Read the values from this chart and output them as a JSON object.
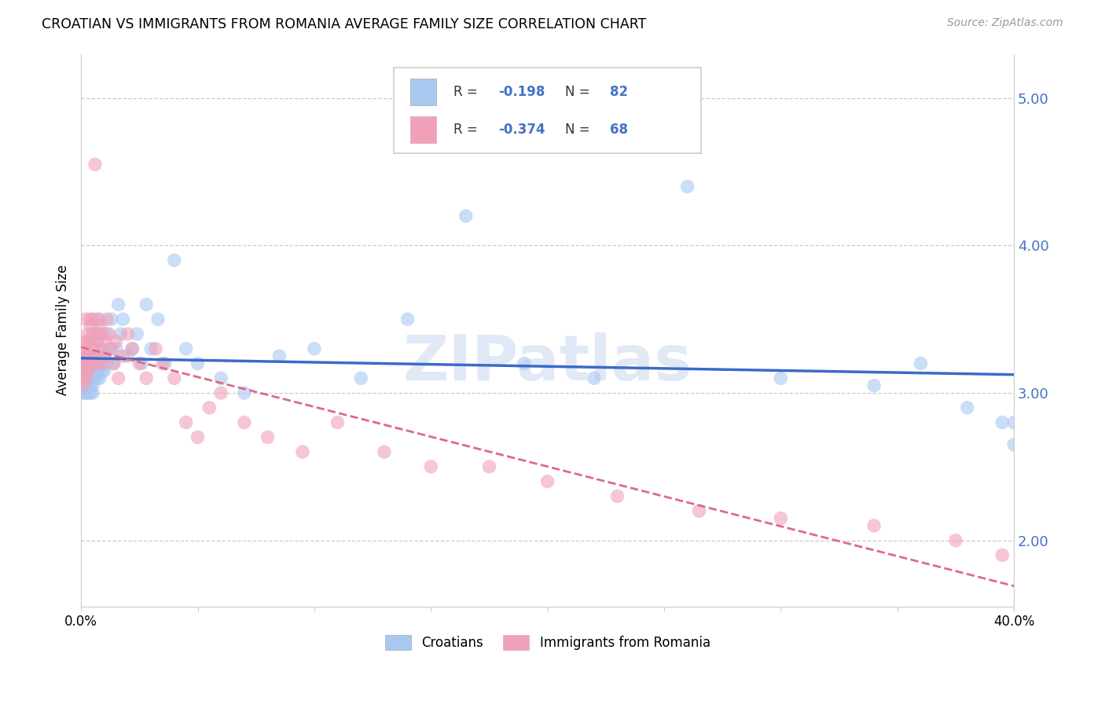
{
  "title": "CROATIAN VS IMMIGRANTS FROM ROMANIA AVERAGE FAMILY SIZE CORRELATION CHART",
  "source": "Source: ZipAtlas.com",
  "ylabel": "Average Family Size",
  "yticks": [
    2.0,
    3.0,
    4.0,
    5.0
  ],
  "xlim": [
    0.0,
    0.4
  ],
  "ylim": [
    1.55,
    5.3
  ],
  "croatians_R": "-0.198",
  "croatians_N": "82",
  "romania_R": "-0.374",
  "romania_N": "68",
  "blue_scatter_color": "#A8C8F0",
  "pink_scatter_color": "#F0A0B8",
  "blue_line_color": "#3A6BC8",
  "pink_line_color": "#E06888",
  "watermark": "ZIPatlas",
  "legend_label_blue": "Croatians",
  "legend_label_pink": "Immigrants from Romania",
  "croatians_x": [
    0.001,
    0.001,
    0.001,
    0.001,
    0.001,
    0.002,
    0.002,
    0.002,
    0.002,
    0.002,
    0.002,
    0.002,
    0.003,
    0.003,
    0.003,
    0.003,
    0.003,
    0.003,
    0.003,
    0.004,
    0.004,
    0.004,
    0.004,
    0.004,
    0.004,
    0.005,
    0.005,
    0.005,
    0.005,
    0.005,
    0.006,
    0.006,
    0.006,
    0.006,
    0.007,
    0.007,
    0.007,
    0.007,
    0.008,
    0.008,
    0.008,
    0.009,
    0.009,
    0.01,
    0.01,
    0.011,
    0.011,
    0.012,
    0.013,
    0.014,
    0.015,
    0.016,
    0.017,
    0.018,
    0.02,
    0.022,
    0.024,
    0.026,
    0.028,
    0.03,
    0.033,
    0.036,
    0.04,
    0.045,
    0.05,
    0.06,
    0.07,
    0.085,
    0.1,
    0.12,
    0.14,
    0.165,
    0.19,
    0.22,
    0.26,
    0.3,
    0.34,
    0.36,
    0.38,
    0.395,
    0.4,
    0.4
  ],
  "croatians_y": [
    3.2,
    3.1,
    3.0,
    3.15,
    3.05,
    3.15,
    3.05,
    3.2,
    3.1,
    3.0,
    3.25,
    3.1,
    3.2,
    3.05,
    3.1,
    3.0,
    3.15,
    3.25,
    3.1,
    3.2,
    3.1,
    3.0,
    3.15,
    3.25,
    3.05,
    3.2,
    3.1,
    3.05,
    3.15,
    3.0,
    3.35,
    3.2,
    3.1,
    3.25,
    3.4,
    3.15,
    3.2,
    3.1,
    3.5,
    3.2,
    3.1,
    3.3,
    3.15,
    3.25,
    3.15,
    3.4,
    3.2,
    3.3,
    3.5,
    3.2,
    3.3,
    3.6,
    3.4,
    3.5,
    3.25,
    3.3,
    3.4,
    3.2,
    3.6,
    3.3,
    3.5,
    3.2,
    3.9,
    3.3,
    3.2,
    3.1,
    3.0,
    3.25,
    3.3,
    3.1,
    3.5,
    4.2,
    3.2,
    3.1,
    4.4,
    3.1,
    3.05,
    3.2,
    2.9,
    2.8,
    2.65,
    2.8
  ],
  "romania_x": [
    0.001,
    0.001,
    0.001,
    0.001,
    0.002,
    0.002,
    0.002,
    0.002,
    0.002,
    0.002,
    0.002,
    0.003,
    0.003,
    0.003,
    0.003,
    0.003,
    0.004,
    0.004,
    0.004,
    0.004,
    0.005,
    0.005,
    0.005,
    0.005,
    0.006,
    0.006,
    0.006,
    0.007,
    0.007,
    0.007,
    0.008,
    0.008,
    0.009,
    0.009,
    0.01,
    0.01,
    0.011,
    0.012,
    0.013,
    0.014,
    0.015,
    0.016,
    0.018,
    0.02,
    0.022,
    0.025,
    0.028,
    0.032,
    0.035,
    0.04,
    0.045,
    0.05,
    0.055,
    0.06,
    0.07,
    0.08,
    0.095,
    0.11,
    0.13,
    0.15,
    0.175,
    0.2,
    0.23,
    0.265,
    0.3,
    0.34,
    0.375,
    0.395
  ],
  "romania_y": [
    3.2,
    3.1,
    3.25,
    3.05,
    3.35,
    3.15,
    3.2,
    3.3,
    3.1,
    3.25,
    3.5,
    3.4,
    3.2,
    3.35,
    3.25,
    3.15,
    3.5,
    3.35,
    3.25,
    3.45,
    3.4,
    3.3,
    3.2,
    3.5,
    4.55,
    3.4,
    3.25,
    3.5,
    3.35,
    3.2,
    3.45,
    3.3,
    3.4,
    3.2,
    3.35,
    3.25,
    3.5,
    3.4,
    3.3,
    3.2,
    3.35,
    3.1,
    3.25,
    3.4,
    3.3,
    3.2,
    3.1,
    3.3,
    3.2,
    3.1,
    2.8,
    2.7,
    2.9,
    3.0,
    2.8,
    2.7,
    2.6,
    2.8,
    2.6,
    2.5,
    2.5,
    2.4,
    2.3,
    2.2,
    2.15,
    2.1,
    2.0,
    1.9
  ]
}
